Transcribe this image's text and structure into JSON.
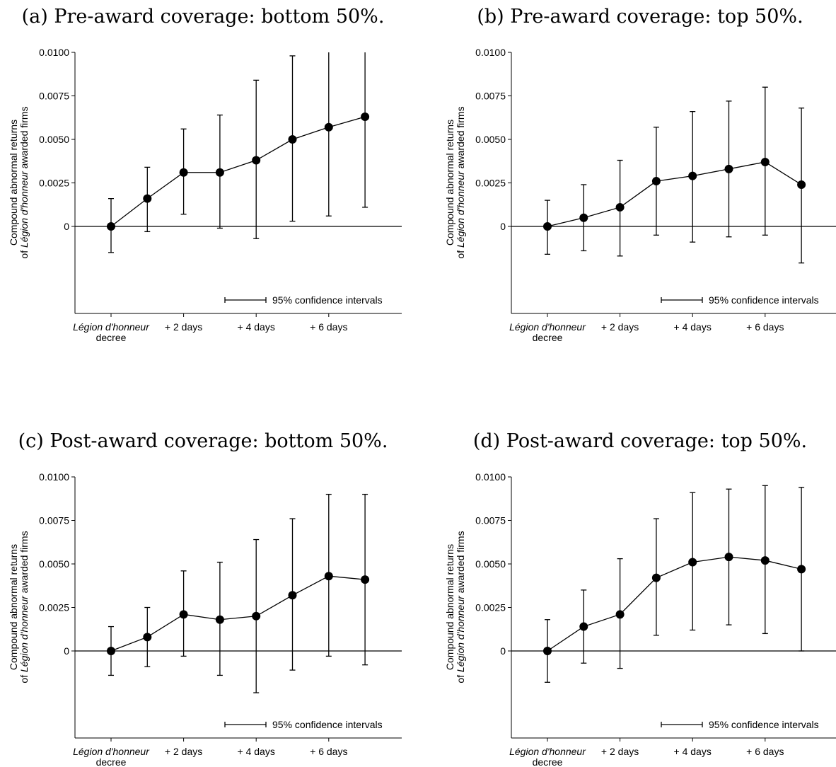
{
  "chart_data": [
    {
      "type": "line",
      "title": "(a) Pre-award coverage: bottom 50%.",
      "ylabel": {
        "line1": "Compound abnormal returns",
        "line2_prefix": "of ",
        "line2_italic": "Légion d'honneur",
        "line2_suffix": " awarded firms"
      },
      "y_ticks": [
        "0.0100",
        "0.0075",
        "0.0050",
        "0.0025",
        "0"
      ],
      "x_tick_labels": [
        {
          "day": 0,
          "text": "Légion d'honneur",
          "text2": "decree"
        },
        {
          "day": 2,
          "text": "+ 2 days"
        },
        {
          "day": 4,
          "text": "+ 4 days"
        },
        {
          "day": 6,
          "text": "+ 6 days"
        }
      ],
      "ylim": [
        -0.005,
        0.01
      ],
      "legend": "95% confidence intervals",
      "x": [
        0,
        1,
        2,
        3,
        4,
        5,
        6,
        7
      ],
      "y": [
        0.0,
        0.0016,
        0.0031,
        0.0031,
        0.0038,
        0.005,
        0.0057,
        0.0063
      ],
      "ci_low": [
        -0.0015,
        -0.0003,
        0.0007,
        -0.0001,
        -0.0007,
        0.0003,
        0.0006,
        0.0011
      ],
      "ci_high": [
        0.0016,
        0.0034,
        0.0056,
        0.0064,
        0.0084,
        0.0098,
        0.01,
        0.01
      ]
    },
    {
      "type": "line",
      "title": "(b) Pre-award coverage: top 50%.",
      "ylabel": {
        "line1": "Compound abnormal returns",
        "line2_prefix": "of ",
        "line2_italic": "Légion d'honneur",
        "line2_suffix": " awarded firms"
      },
      "y_ticks": [
        "0.0100",
        "0.0075",
        "0.0050",
        "0.0025",
        "0"
      ],
      "x_tick_labels": [
        {
          "day": 0,
          "text": "Légion d'honneur",
          "text2": "decree"
        },
        {
          "day": 2,
          "text": "+ 2 days"
        },
        {
          "day": 4,
          "text": "+ 4 days"
        },
        {
          "day": 6,
          "text": "+ 6 days"
        }
      ],
      "ylim": [
        -0.005,
        0.01
      ],
      "legend": "95% confidence intervals",
      "x": [
        0,
        1,
        2,
        3,
        4,
        5,
        6,
        7
      ],
      "y": [
        0.0,
        0.0005,
        0.0011,
        0.0026,
        0.0029,
        0.0033,
        0.0037,
        0.0024
      ],
      "ci_low": [
        -0.0016,
        -0.0014,
        -0.0017,
        -0.0005,
        -0.0009,
        -0.0006,
        -0.0005,
        -0.0021
      ],
      "ci_high": [
        0.0015,
        0.0024,
        0.0038,
        0.0057,
        0.0066,
        0.0072,
        0.008,
        0.0068
      ]
    },
    {
      "type": "line",
      "title": "(c) Post-award coverage: bottom 50%.",
      "ylabel": {
        "line1": "Compound abnormal returns",
        "line2_prefix": "of ",
        "line2_italic": "Légion d'honneur",
        "line2_suffix": " awarded firms"
      },
      "y_ticks": [
        "0.0100",
        "0.0075",
        "0.0050",
        "0.0025",
        "0"
      ],
      "x_tick_labels": [
        {
          "day": 0,
          "text": "Légion d'honneur",
          "text2": "decree"
        },
        {
          "day": 2,
          "text": "+ 2 days"
        },
        {
          "day": 4,
          "text": "+ 4 days"
        },
        {
          "day": 6,
          "text": "+ 6 days"
        }
      ],
      "ylim": [
        -0.005,
        0.01
      ],
      "legend": "95% confidence intervals",
      "x": [
        0,
        1,
        2,
        3,
        4,
        5,
        6,
        7
      ],
      "y": [
        0.0,
        0.0008,
        0.0021,
        0.0018,
        0.002,
        0.0032,
        0.0043,
        0.0041
      ],
      "ci_low": [
        -0.0014,
        -0.0009,
        -0.0003,
        -0.0014,
        -0.0024,
        -0.0011,
        -0.0003,
        -0.0008
      ],
      "ci_high": [
        0.0014,
        0.0025,
        0.0046,
        0.0051,
        0.0064,
        0.0076,
        0.009,
        0.009
      ]
    },
    {
      "type": "line",
      "title": "(d) Post-award coverage: top 50%.",
      "ylabel": {
        "line1": "Compound abnormal returns",
        "line2_prefix": "of ",
        "line2_italic": "Légion d'honneur",
        "line2_suffix": " awarded firms"
      },
      "y_ticks": [
        "0.0100",
        "0.0075",
        "0.0050",
        "0.0025",
        "0"
      ],
      "x_tick_labels": [
        {
          "day": 0,
          "text": "Légion d'honneur",
          "text2": "decree"
        },
        {
          "day": 2,
          "text": "+ 2 days"
        },
        {
          "day": 4,
          "text": "+ 4 days"
        },
        {
          "day": 6,
          "text": "+ 6 days"
        }
      ],
      "ylim": [
        -0.005,
        0.01
      ],
      "legend": "95% confidence intervals",
      "x": [
        0,
        1,
        2,
        3,
        4,
        5,
        6,
        7
      ],
      "y": [
        0.0,
        0.0014,
        0.0021,
        0.0042,
        0.0051,
        0.0054,
        0.0052,
        0.0047
      ],
      "ci_low": [
        -0.0018,
        -0.0007,
        -0.001,
        0.0009,
        0.0012,
        0.0015,
        0.001,
        0.0
      ],
      "ci_high": [
        0.0018,
        0.0035,
        0.0053,
        0.0076,
        0.0091,
        0.0093,
        0.0095,
        0.0094
      ]
    }
  ]
}
